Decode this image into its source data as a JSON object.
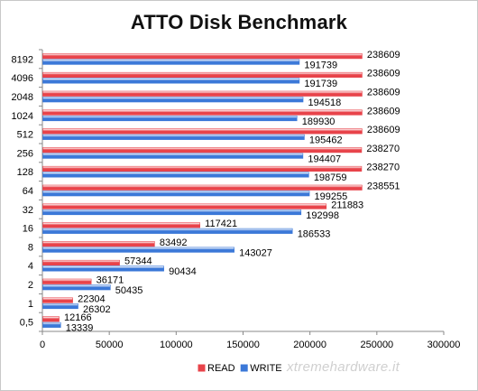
{
  "chart_data": {
    "type": "bar",
    "orientation": "horizontal",
    "title": "ATTO Disk Benchmark",
    "categories": [
      "8192",
      "4096",
      "2048",
      "1024",
      "512",
      "256",
      "128",
      "64",
      "32",
      "16",
      "8",
      "4",
      "2",
      "1",
      "0,5"
    ],
    "series": [
      {
        "name": "READ",
        "color": "#e8434a",
        "values": [
          238609,
          238609,
          238609,
          238609,
          238609,
          238270,
          238270,
          238551,
          211883,
          117421,
          83492,
          57344,
          36171,
          22304,
          12166
        ]
      },
      {
        "name": "WRITE",
        "color": "#3b78d8",
        "values": [
          191739,
          191739,
          194518,
          189930,
          195462,
          194407,
          198759,
          199255,
          192998,
          186533,
          143027,
          90434,
          50435,
          26302,
          13339
        ]
      }
    ],
    "xlim": [
      0,
      300000
    ],
    "xticks": [
      "0",
      "50000",
      "100000",
      "150000",
      "200000",
      "250000",
      "300000"
    ],
    "grid": false,
    "legend_position": "bottom"
  },
  "watermark": "xtremehardware.it"
}
